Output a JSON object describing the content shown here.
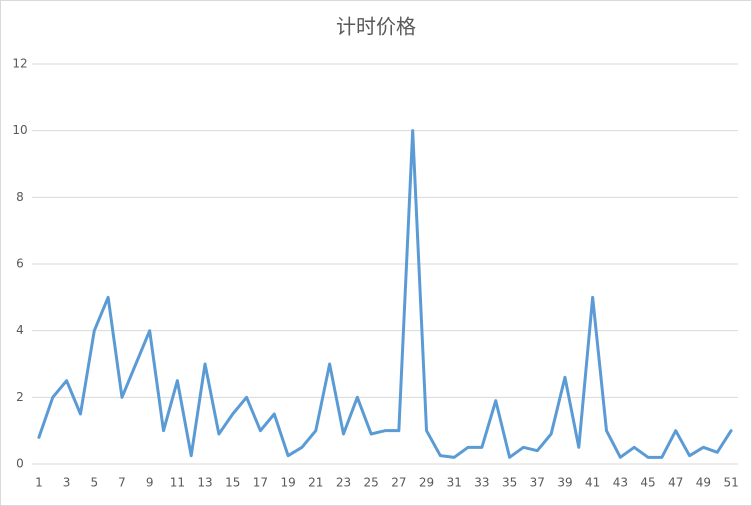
{
  "chart_data": {
    "type": "line",
    "title": "计时价格",
    "categories": [
      1,
      null,
      3,
      null,
      5,
      null,
      7,
      null,
      9,
      null,
      11,
      null,
      13,
      null,
      15,
      null,
      17,
      null,
      19,
      null,
      21,
      null,
      23,
      null,
      25,
      null,
      27,
      null,
      29,
      null,
      31,
      null,
      33,
      null,
      35,
      null,
      37,
      null,
      39,
      null,
      41,
      null,
      43,
      null,
      45,
      null,
      47,
      null,
      49,
      null,
      51
    ],
    "values": [
      0.8,
      2,
      2.5,
      1.5,
      4,
      5,
      2,
      3,
      4,
      1,
      2.5,
      0.25,
      3,
      0.9,
      1.5,
      2,
      1,
      1.5,
      0.25,
      0.5,
      1,
      3,
      0.9,
      2,
      0.9,
      1,
      1,
      10,
      1,
      0.25,
      0.2,
      0.5,
      0.5,
      1.9,
      0.2,
      0.5,
      0.4,
      0.9,
      2.6,
      0.5,
      5,
      1,
      0.2,
      0.5,
      0.2,
      0.2,
      1,
      0.25,
      0.5,
      0.35,
      1
    ],
    "color": "#5b9bd5",
    "ylim": [
      0,
      12
    ],
    "yticks": [
      0,
      2,
      4,
      6,
      8,
      10,
      12
    ],
    "grid": true
  }
}
